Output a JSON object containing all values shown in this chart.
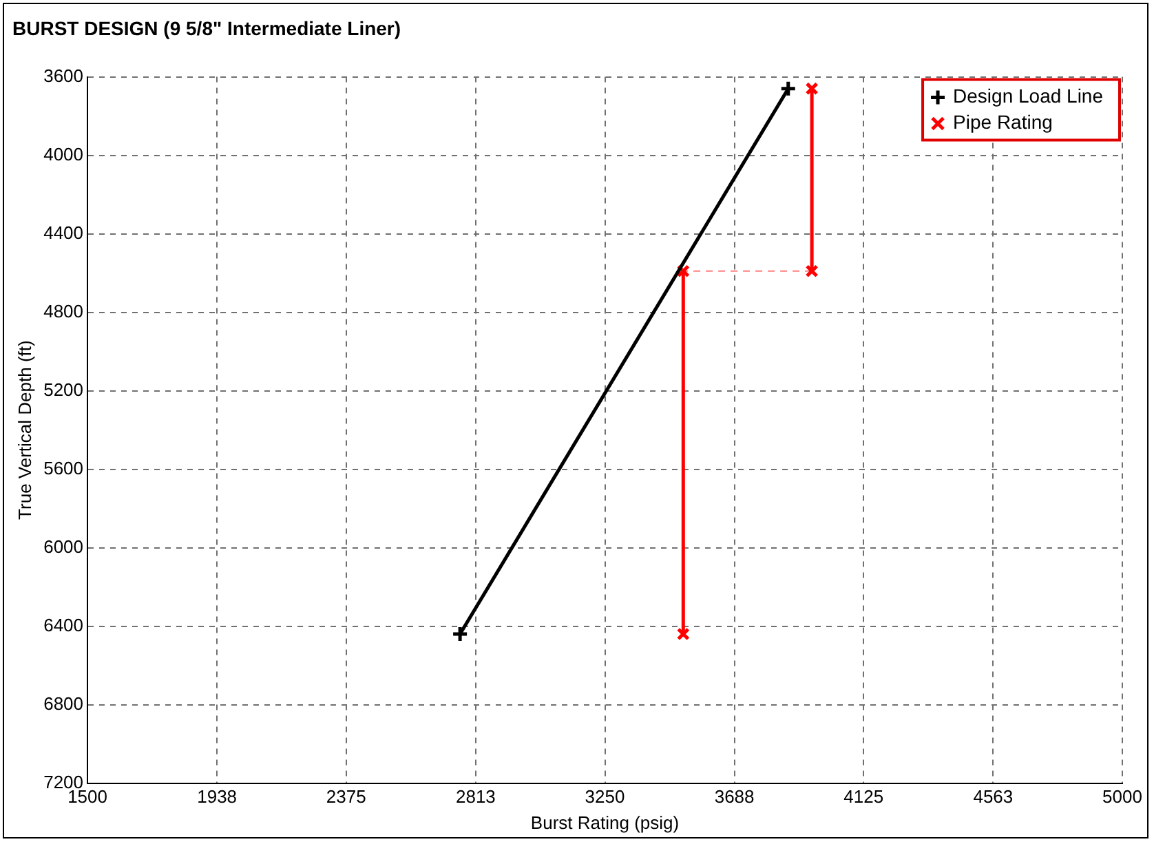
{
  "chart_data": {
    "type": "line",
    "title": "BURST DESIGN (9 5/8\" Intermediate Liner)",
    "xlabel": "Burst Rating (psig)",
    "ylabel": "True Vertical Depth (ft)",
    "xlim": [
      1500,
      5000
    ],
    "xticks": [
      1500,
      1938,
      2375,
      2813,
      3250,
      3688,
      4125,
      4563,
      5000
    ],
    "ylim": [
      7200,
      3600
    ],
    "yticks": [
      3600,
      4000,
      4400,
      4800,
      5200,
      5600,
      6000,
      6400,
      6800,
      7200
    ],
    "grid": true,
    "legend": "top right",
    "series": [
      {
        "name": "Design Load Line",
        "color": "#000000",
        "x": [
          2760,
          3870
        ],
        "values": [
          6440,
          3660
        ],
        "marker": "cross",
        "line_style": "solid"
      },
      {
        "name": "Pipe Rating",
        "color": "#ff0000",
        "x": [
          3950,
          3950,
          null,
          3515,
          3515
        ],
        "values": [
          3660,
          4590,
          null,
          4590,
          6440
        ],
        "marker": "x",
        "line_style": "solid"
      },
      {
        "color": "#ff8080",
        "x": [
          3950,
          3515
        ],
        "values": [
          4590,
          4590
        ],
        "marker": "none",
        "line_style": "dashed"
      }
    ]
  }
}
